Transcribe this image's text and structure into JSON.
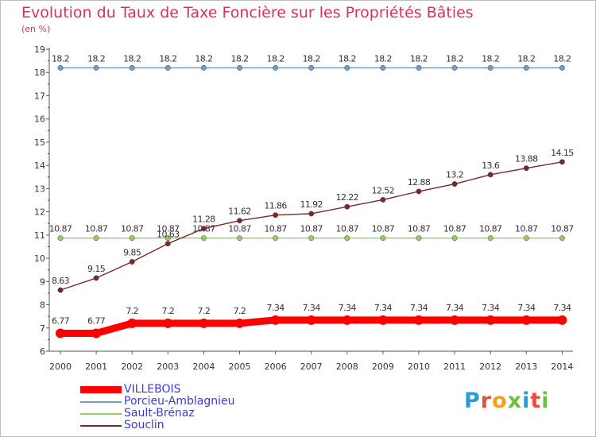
{
  "title": "Evolution du Taux de Taxe Foncière sur les Propriétés Bâties",
  "subtitle": "(en %)",
  "brand": "Proxiti",
  "chart_data": {
    "type": "line",
    "title": "Evolution du Taux de Taxe Foncière sur les Propriétés Bâties",
    "ylabel": "(en %)",
    "xlabel": "",
    "ylim": [
      6,
      19
    ],
    "yticks": [
      6,
      7,
      8,
      9,
      10,
      11,
      12,
      13,
      14,
      15,
      16,
      17,
      18,
      19
    ],
    "grid": false,
    "legend": "bottom-left",
    "categories": [
      "2000",
      "2001",
      "2002",
      "2003",
      "2004",
      "2005",
      "2006",
      "2007",
      "2008",
      "2009",
      "2010",
      "2011",
      "2012",
      "2013",
      "2014"
    ],
    "series": [
      {
        "name": "VILLEBOIS",
        "color": "#ff0000",
        "values": [
          6.77,
          6.77,
          7.2,
          7.2,
          7.2,
          7.2,
          7.34,
          7.34,
          7.34,
          7.34,
          7.34,
          7.34,
          7.34,
          7.34,
          7.34
        ],
        "labels": [
          "6.77",
          "6.77",
          "7.2",
          "7.2",
          "7.2",
          "7.2",
          "7.34",
          "7.34",
          "7.34",
          "7.34",
          "7.34",
          "7.34",
          "7.34",
          "7.34",
          "7.34"
        ]
      },
      {
        "name": "Porcieu-Amblagnieu",
        "color": "#6a9fcf",
        "values": [
          18.2,
          18.2,
          18.2,
          18.2,
          18.2,
          18.2,
          18.2,
          18.2,
          18.2,
          18.2,
          18.2,
          18.2,
          18.2,
          18.2,
          18.2
        ],
        "labels": [
          "18.2",
          "18.2",
          "18.2",
          "18.2",
          "18.2",
          "18.2",
          "18.2",
          "18.2",
          "18.2",
          "18.2",
          "18.2",
          "18.2",
          "18.2",
          "18.2",
          "18.2"
        ]
      },
      {
        "name": "Sault-Brénaz",
        "color": "#93cf5e",
        "values": [
          10.87,
          10.87,
          10.87,
          10.87,
          10.87,
          10.87,
          10.87,
          10.87,
          10.87,
          10.87,
          10.87,
          10.87,
          10.87,
          10.87,
          10.87
        ],
        "labels": [
          "10.87",
          "10.87",
          "10.87",
          "10.87",
          "10.87",
          "10.87",
          "10.87",
          "10.87",
          "10.87",
          "10.87",
          "10.87",
          "10.87",
          "10.87",
          "10.87",
          "10.87"
        ]
      },
      {
        "name": "Souclin",
        "color": "#7a2828",
        "values": [
          8.63,
          9.15,
          9.85,
          10.63,
          11.28,
          11.62,
          11.86,
          11.92,
          12.22,
          12.52,
          12.88,
          13.2,
          13.6,
          13.88,
          14.15
        ],
        "labels": [
          "8.63",
          "9.15",
          "9.85",
          "10.63",
          "11.28",
          "11.62",
          "11.86",
          "11.92",
          "12.22",
          "12.52",
          "12.88",
          "13.2",
          "13.6",
          "13.88",
          "14.15"
        ]
      }
    ]
  }
}
